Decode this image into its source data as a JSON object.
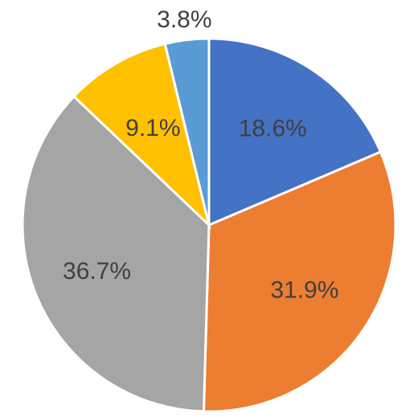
{
  "chart_data": {
    "type": "pie",
    "title": "",
    "slices": [
      {
        "value": 18.6,
        "label": "18.6%",
        "color": "#4472C4"
      },
      {
        "value": 31.9,
        "label": "31.9%",
        "color": "#ED7D31"
      },
      {
        "value": 36.7,
        "label": "36.7%",
        "color": "#A5A5A5"
      },
      {
        "value": 9.1,
        "label": "9.1%",
        "color": "#FFC000"
      },
      {
        "value": 3.8,
        "label": "3.8%",
        "color": "#5B9BD5"
      }
    ],
    "start_direction": "top",
    "winding": "clockwise",
    "legend": "none"
  }
}
